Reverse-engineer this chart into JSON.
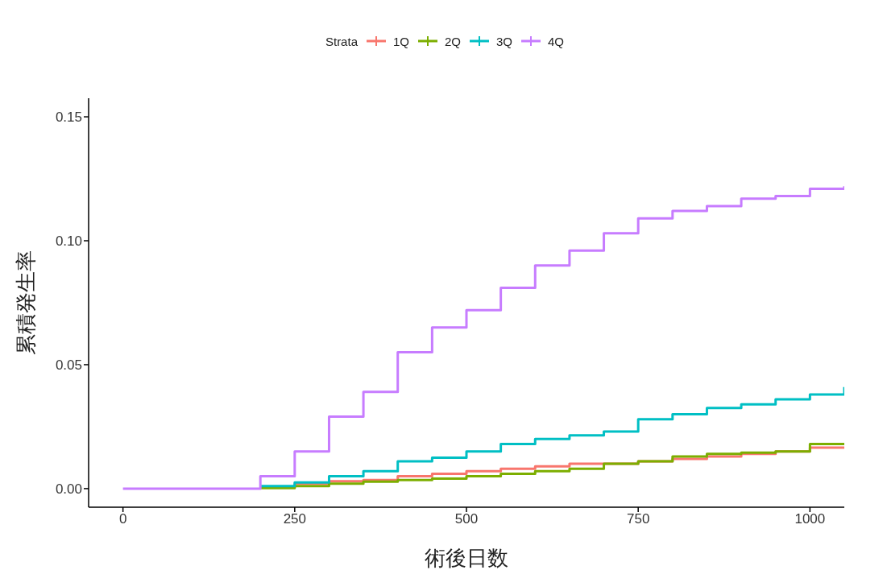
{
  "chart_data": {
    "type": "step",
    "xlabel": "術後日数",
    "ylabel": "累積発生率",
    "legend_title": "Strata",
    "legend": "top",
    "x": [
      0,
      155,
      200,
      250,
      300,
      350,
      400,
      450,
      500,
      550,
      600,
      650,
      700,
      750,
      800,
      850,
      900,
      950,
      1000,
      1050
    ],
    "xlim": [
      -50,
      1050
    ],
    "xticks": [
      0,
      250,
      500,
      750,
      1000
    ],
    "ylim": [
      -0.0075,
      0.1575
    ],
    "yticks": [
      {
        "value": 0,
        "label": "0.00"
      },
      {
        "value": 0.05,
        "label": "0.05"
      },
      {
        "value": 0.1,
        "label": "0.10"
      },
      {
        "value": 0.15,
        "label": "0.15"
      }
    ],
    "series": [
      {
        "name": "1Q",
        "color": "#f8766d",
        "values": [
          null,
          null,
          0.0005,
          0.002,
          0.003,
          0.0035,
          0.005,
          0.006,
          0.007,
          0.008,
          0.009,
          0.01,
          0.01,
          0.011,
          0.012,
          0.013,
          0.014,
          0.015,
          0.0165,
          0.017
        ]
      },
      {
        "name": "2Q",
        "color": "#7cae00",
        "values": [
          null,
          null,
          0.0002,
          0.001,
          0.002,
          0.0028,
          0.0035,
          0.004,
          0.005,
          0.006,
          0.007,
          0.008,
          0.01,
          0.011,
          0.013,
          0.014,
          0.0145,
          0.015,
          0.018,
          0.0185
        ]
      },
      {
        "name": "3Q",
        "color": "#00bfc4",
        "values": [
          null,
          null,
          0.001,
          0.0025,
          0.005,
          0.007,
          0.011,
          0.0125,
          0.015,
          0.018,
          0.02,
          0.0215,
          0.023,
          0.028,
          0.03,
          0.0325,
          0.034,
          0.036,
          0.038,
          0.041
        ]
      },
      {
        "name": "4Q",
        "color": "#c77cff",
        "values": [
          0,
          0,
          0.005,
          0.015,
          0.029,
          0.039,
          0.055,
          0.065,
          0.072,
          0.081,
          0.09,
          0.096,
          0.103,
          0.109,
          0.112,
          0.114,
          0.117,
          0.118,
          0.121,
          0.122
        ]
      }
    ]
  }
}
